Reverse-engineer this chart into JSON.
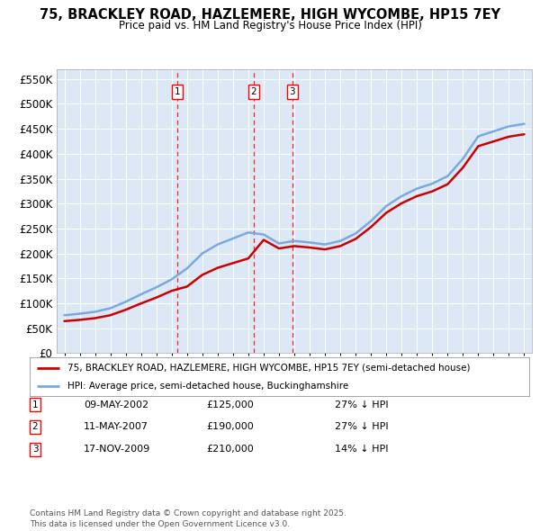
{
  "title": "75, BRACKLEY ROAD, HAZLEMERE, HIGH WYCOMBE, HP15 7EY",
  "subtitle": "Price paid vs. HM Land Registry's House Price Index (HPI)",
  "transactions": [
    {
      "num": 1,
      "date": "09-MAY-2002",
      "price": 125000,
      "year": 2002.36,
      "pct": "27%",
      "dir": "↓"
    },
    {
      "num": 2,
      "date": "11-MAY-2007",
      "price": 190000,
      "year": 2007.36,
      "pct": "27%",
      "dir": "↓"
    },
    {
      "num": 3,
      "date": "17-NOV-2009",
      "price": 210000,
      "year": 2009.88,
      "pct": "14%",
      "dir": "↓"
    }
  ],
  "legend_property": "75, BRACKLEY ROAD, HAZLEMERE, HIGH WYCOMBE, HP15 7EY (semi-detached house)",
  "legend_hpi": "HPI: Average price, semi-detached house, Buckinghamshire",
  "footer": "Contains HM Land Registry data © Crown copyright and database right 2025.\nThis data is licensed under the Open Government Licence v3.0.",
  "property_color": "#cc0000",
  "hpi_color": "#7aaadd",
  "ylim": [
    0,
    570000
  ],
  "yticks": [
    0,
    50000,
    100000,
    150000,
    200000,
    250000,
    300000,
    350000,
    400000,
    450000,
    500000,
    550000
  ],
  "xlim": [
    1994.5,
    2025.5
  ],
  "bg_color": "#dce8f5",
  "hpi_years": [
    1995,
    1996,
    1997,
    1998,
    1999,
    2000,
    2001,
    2002,
    2003,
    2004,
    2005,
    2006,
    2007,
    2008,
    2009,
    2010,
    2011,
    2012,
    2013,
    2014,
    2015,
    2016,
    2017,
    2018,
    2019,
    2020,
    2021,
    2022,
    2023,
    2024,
    2025
  ],
  "hpi_values": [
    76000,
    79000,
    83000,
    90000,
    103000,
    118000,
    132000,
    148000,
    170000,
    200000,
    218000,
    230000,
    242000,
    238000,
    220000,
    225000,
    222000,
    218000,
    225000,
    240000,
    265000,
    295000,
    315000,
    330000,
    340000,
    355000,
    390000,
    435000,
    445000,
    455000,
    460000
  ],
  "prop_seg1_scale": 0.844,
  "prop_seg2_scale": 0.784,
  "prop_seg3_scale": 0.953
}
